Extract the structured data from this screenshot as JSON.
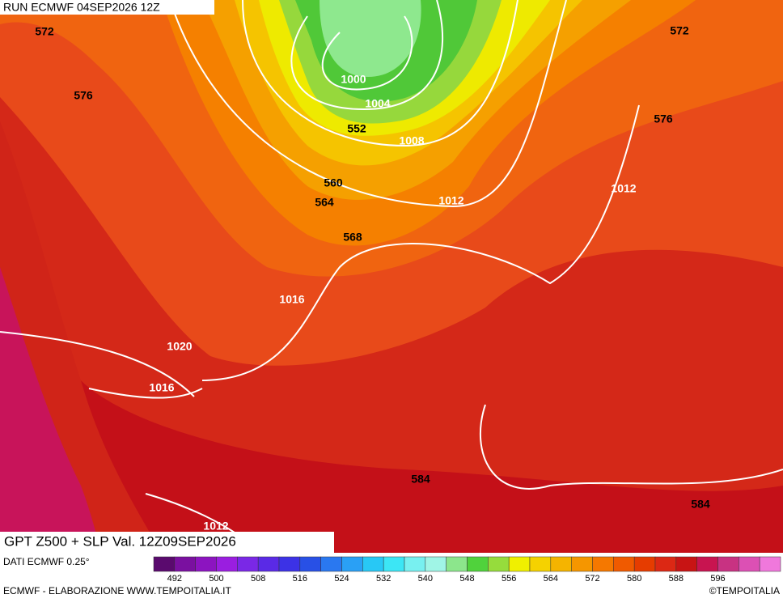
{
  "header": {
    "run": "RUN ECMWF 04SEP2026 12Z"
  },
  "map": {
    "height_labels": [
      "572",
      "576",
      "552",
      "572",
      "576",
      "560",
      "564",
      "568",
      "584",
      "584"
    ],
    "pressure_labels": [
      "1000",
      "1004",
      "1008",
      "1012",
      "1012",
      "1016",
      "1020",
      "1016",
      "1012"
    ]
  },
  "legend": {
    "title": "GPT Z500 + SLP Val. 12Z09SEP2026",
    "source": "DATI ECMWF 0.25°",
    "colors": [
      "#5a0a6e",
      "#7a10a0",
      "#8c14c0",
      "#9a1ee0",
      "#7a28e6",
      "#5a2ae6",
      "#3c32e6",
      "#2850e6",
      "#2a78f0",
      "#2aa0f5",
      "#28c8f5",
      "#3ce6f5",
      "#78f0f0",
      "#a0f5e6",
      "#8ce68c",
      "#50d23c",
      "#96dc3c",
      "#f0f000",
      "#f5d200",
      "#f5b400",
      "#f59600",
      "#f57800",
      "#f05a00",
      "#e63c00",
      "#dc2814",
      "#c81414",
      "#c81450",
      "#c83282",
      "#dc50b4",
      "#f078dc"
    ],
    "ticks": [
      "492",
      "500",
      "508",
      "516",
      "524",
      "532",
      "540",
      "548",
      "556",
      "564",
      "572",
      "580",
      "588",
      "596"
    ]
  },
  "footer": {
    "left": "ECMWF - ELABORAZIONE WWW.TEMPOITALIA.IT",
    "right": "©TEMPOITALIA"
  }
}
